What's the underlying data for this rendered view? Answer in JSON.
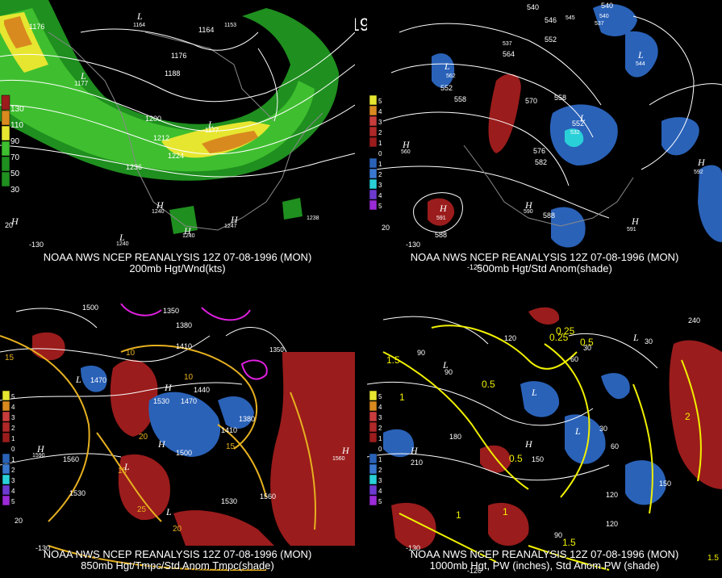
{
  "main_title": "12Z 07-08-1996 (MON)",
  "colors": {
    "background": "#000000",
    "contour": "#ffffff",
    "coastline": "#8a8a8a",
    "wind_green_dark": "#1f8f1f",
    "wind_green": "#3fbf2f",
    "wind_yellow": "#e6e630",
    "wind_orange": "#d98a1f",
    "anom_red": "#9b1c1c",
    "anom_blue": "#2a62b8",
    "anom_cyan": "#29d0d8",
    "temp_contour": "#e6b020",
    "pw_contour": "#f0f000",
    "height_low_magenta": "#e020e0"
  },
  "panels": {
    "p1": {
      "title_line1": "NOAA NWS NCEP REANALYSIS 12Z 07-08-1996 (MON)",
      "title_line2": "200mb Hgt/Wnd(kts)",
      "legend": [
        "130",
        "110",
        "90",
        "70",
        "50",
        "30"
      ],
      "contour_labels": [
        "1176",
        "1164",
        "1176",
        "1188",
        "1177",
        "1200",
        "1212",
        "1224",
        "1236",
        "1177",
        "1240",
        "1240",
        "1247",
        "1240",
        "1238",
        "1164",
        "1153"
      ],
      "longitude_labels": [
        "-130",
        "20"
      ]
    },
    "p2": {
      "title_line1": "NOAA NWS NCEP REANALYSIS 12Z 07-08-1996 (MON)",
      "title_line2": "500mb Hgt/Std Anom(shade)",
      "legend": [
        "5",
        "4",
        "3",
        "2",
        "1",
        "0",
        "1",
        "2",
        "3",
        "4",
        "5"
      ],
      "contour_labels": [
        "540",
        "546",
        "540",
        "552",
        "564",
        "552",
        "558",
        "570",
        "558",
        "552",
        "576",
        "582",
        "588",
        "588",
        "591",
        "590",
        "591",
        "592",
        "544",
        "537",
        "545",
        "537",
        "562",
        "560",
        "532",
        "540"
      ],
      "longitude_labels": [
        "-130",
        "-120",
        "20"
      ]
    },
    "p3": {
      "title_line1": "NOAA NWS NCEP REANALYSIS 12Z 07-08-1996 (MON)",
      "title_line2": "850mb Hgt/Tmpc/Std Anom Tmpc(shade)",
      "legend": [
        "5",
        "4",
        "3",
        "2",
        "1",
        "0",
        "1",
        "2",
        "3",
        "4",
        "5"
      ],
      "contour_labels": [
        "1500",
        "1350",
        "1380",
        "1410",
        "1440",
        "1470",
        "1530",
        "1470",
        "1500",
        "1410",
        "1380",
        "1560",
        "1560",
        "1530",
        "1560",
        "1590",
        "1530",
        "1350",
        "15",
        "10",
        "15",
        "25",
        "20",
        "10",
        "15",
        "20"
      ],
      "longitude_labels": [
        "-130",
        "20"
      ]
    },
    "p4": {
      "title_line1": "NOAA NWS NCEP REANALYSIS 12Z 07-08-1996 (MON)",
      "title_line2": "1000mb Hgt, PW (inches), Std Anom PW (shade)",
      "legend": [
        "5",
        "4",
        "3",
        "2",
        "1",
        "0",
        "1",
        "2",
        "3",
        "4",
        "5"
      ],
      "contour_labels": [
        "90",
        "120",
        "60",
        "30",
        "90",
        "180",
        "210",
        "150",
        "30",
        "60",
        "120",
        "150",
        "240",
        "30",
        "0.5",
        "0.25",
        "1.5",
        "1",
        "2",
        "0.5",
        "1",
        "1.5",
        "0.25",
        "0.5",
        "1",
        "90",
        "120"
      ],
      "longitude_labels": [
        "-130",
        "-120",
        "1.5"
      ]
    }
  }
}
